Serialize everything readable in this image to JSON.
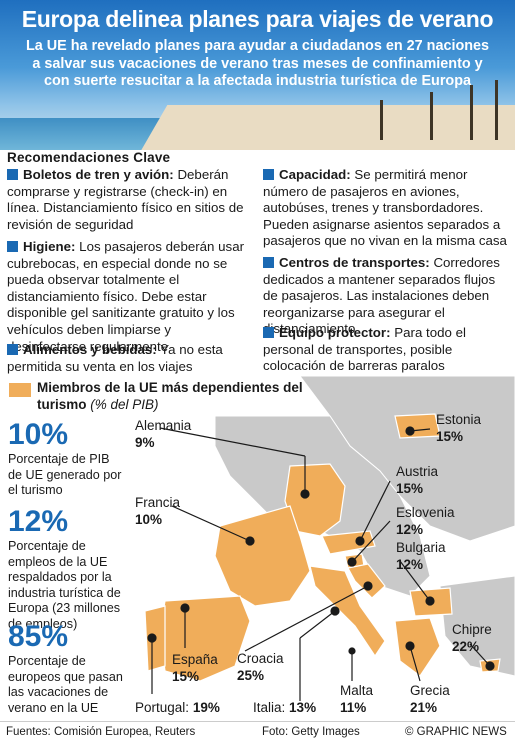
{
  "header": {
    "title": "Europa delinea planes para viajes de verano",
    "subtitle": "La UE ha revelado planes para ayudar a ciudadanos en 27 naciones a salvar sus vacaciones de verano tras meses de confinamiento y con suerte resucitar a la afectada industria turística de Europa"
  },
  "recommendations": {
    "heading": "Recomendaciones Clave",
    "items": [
      {
        "title": "Boletos de tren y avión:",
        "text": "Deberán comprarse y registrarse (check-in) en línea. Distanciamiento físico en sitios de revisión de seguridad"
      },
      {
        "title": "Higiene:",
        "text": "Los pasajeros deberán usar cubrebocas, en especial donde no se pueda observar totalmente el distanciamiento físico. Debe estar disponible gel sanitizante gratuito y los vehículos deben limpiarse y desinfectarse regularmente"
      },
      {
        "title": "Alimentos y bebidas:",
        "text": "Ya no esta permitida su venta en los viajes"
      },
      {
        "title": "Capacidad:",
        "text": "Se permitirá menor número de pasajeros en aviones, autobúses, trenes y transbordadores. Pueden asignarse asientos separados a pasajeros que no vivan en la misma casa"
      },
      {
        "title": "Centros de transportes:",
        "text": "Corredores dedicados a mantener separados flujos de pasajeros. Las instalaciones deben reorganizarse para asegurar el distanciamiento"
      },
      {
        "title": "Equipo protector:",
        "text": "Para todo el personal de transportes, posible colocación de barreras paralos conductores"
      }
    ]
  },
  "legend": {
    "title": "Miembros de la UE más dependientes del turismo",
    "unit": "(% del PIB)",
    "color": "#f0ad5a"
  },
  "stats": [
    {
      "value": "10%",
      "text": "Porcentaje de PIB de UE generado por el turismo"
    },
    {
      "value": "12%",
      "text": "Porcentaje de empleos de la UE respaldados por la industria turística de Europa (23 millones de empleos)"
    },
    {
      "value": "85%",
      "text": "Porcentaje de europeos que pasan las vacaciones de verano en la UE"
    }
  ],
  "countries": [
    {
      "name": "Alemania",
      "pct": "9%"
    },
    {
      "name": "Estonia",
      "pct": "15%"
    },
    {
      "name": "Austria",
      "pct": "15%"
    },
    {
      "name": "Francia",
      "pct": "10%"
    },
    {
      "name": "Eslovenia",
      "pct": "12%"
    },
    {
      "name": "Bulgaria",
      "pct": "12%"
    },
    {
      "name": "Chipre",
      "pct": "22%"
    },
    {
      "name": "España",
      "pct": "15%"
    },
    {
      "name": "Croacia",
      "pct": "25%"
    },
    {
      "name": "Malta",
      "pct": "11%"
    },
    {
      "name": "Grecia",
      "pct": "21%"
    },
    {
      "name": "Portugal:",
      "pct": "19%"
    },
    {
      "name": "Italia:",
      "pct": "13%"
    }
  ],
  "footer": {
    "sources": "Fuentes: Comisión Europea, Reuters",
    "photo": "Foto: Getty Images",
    "credit": "© GRAPHIC NEWS"
  },
  "colors": {
    "accent_blue": "#1a69b3",
    "highlight_orange": "#f0ad5a",
    "land_grey": "#c9c9c9"
  }
}
